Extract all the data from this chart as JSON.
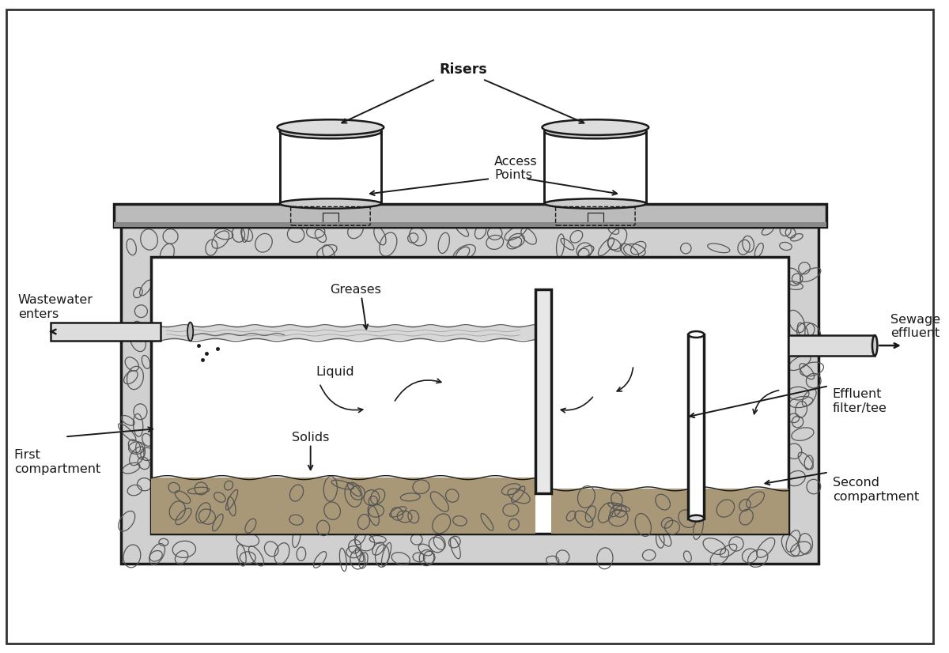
{
  "bg_color": "#ffffff",
  "lc": "#1a1a1a",
  "labels": {
    "risers": "Risers",
    "access_points": "Access\nPoints",
    "wastewater": "Wastewater\nenters",
    "first_compartment": "First\ncompartment",
    "greases": "Greases",
    "liquid": "Liquid",
    "solids": "Solids",
    "sewage_effluent": "Sewage\neffluent",
    "effluent_filter": "Effluent\nfilter/tee",
    "second_compartment": "Second\ncompartment"
  },
  "fs": 11.5
}
